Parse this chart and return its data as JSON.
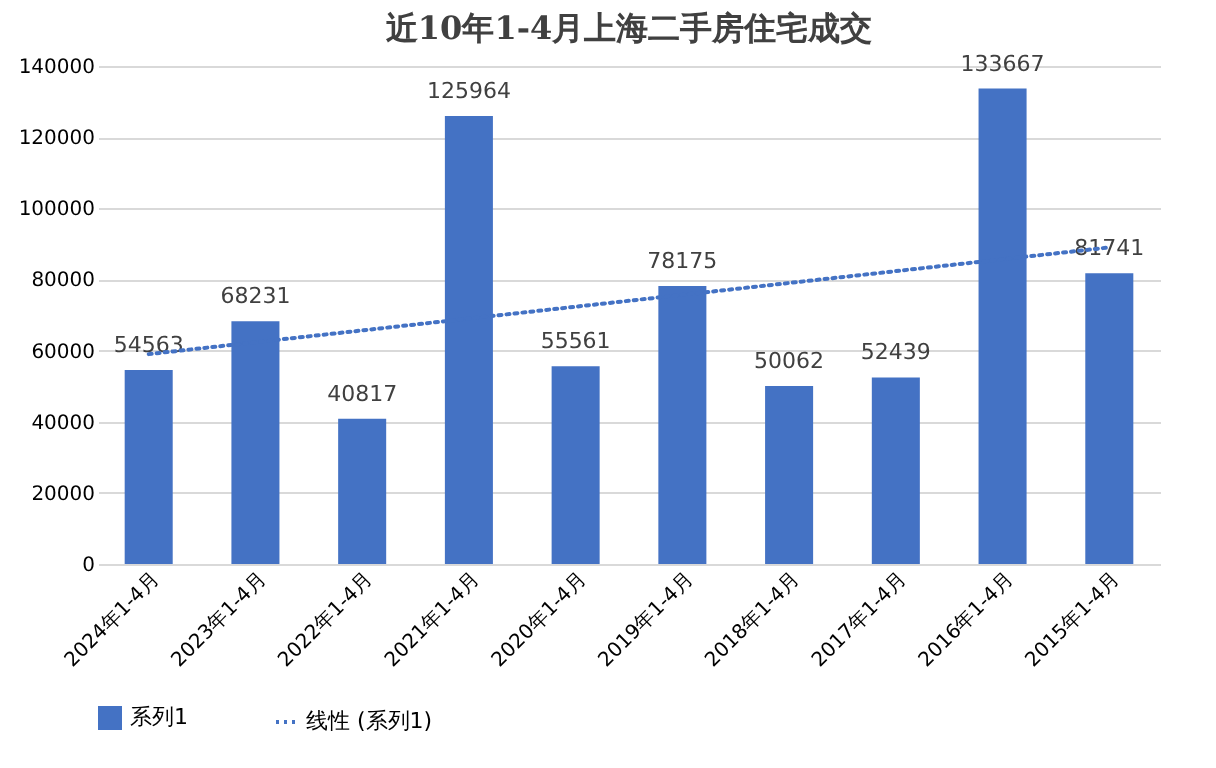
{
  "chart_data": {
    "type": "bar",
    "title": "近10年1-4月上海二手房住宅成交",
    "categories": [
      "2024年1-4月",
      "2023年1-4月",
      "2022年1-4月",
      "2021年1-4月",
      "2020年1-4月",
      "2019年1-4月",
      "2018年1-4月",
      "2017年1-4月",
      "2016年1-4月",
      "2015年1-4月"
    ],
    "series": [
      {
        "name": "系列1",
        "color": "#4472c4",
        "values": [
          54563,
          68231,
          40817,
          125964,
          55561,
          78175,
          50062,
          52439,
          133667,
          81741
        ],
        "value_labels": [
          "54563",
          "68231",
          "40817",
          "125964",
          "55561",
          "78175",
          "50062",
          "52439",
          "133667",
          "81741"
        ]
      },
      {
        "name": "线性 (系列1)",
        "type": "line",
        "line_style": "dotted",
        "color": "#4472c4",
        "x": [
          "2024年1-4月",
          "2015年1-4月"
        ],
        "values": [
          59000,
          89000
        ]
      }
    ],
    "ylim": [
      0,
      140000
    ],
    "yticks": [
      0,
      20000,
      40000,
      60000,
      80000,
      100000,
      120000,
      140000
    ],
    "grid": "y",
    "legend": "bottom"
  }
}
